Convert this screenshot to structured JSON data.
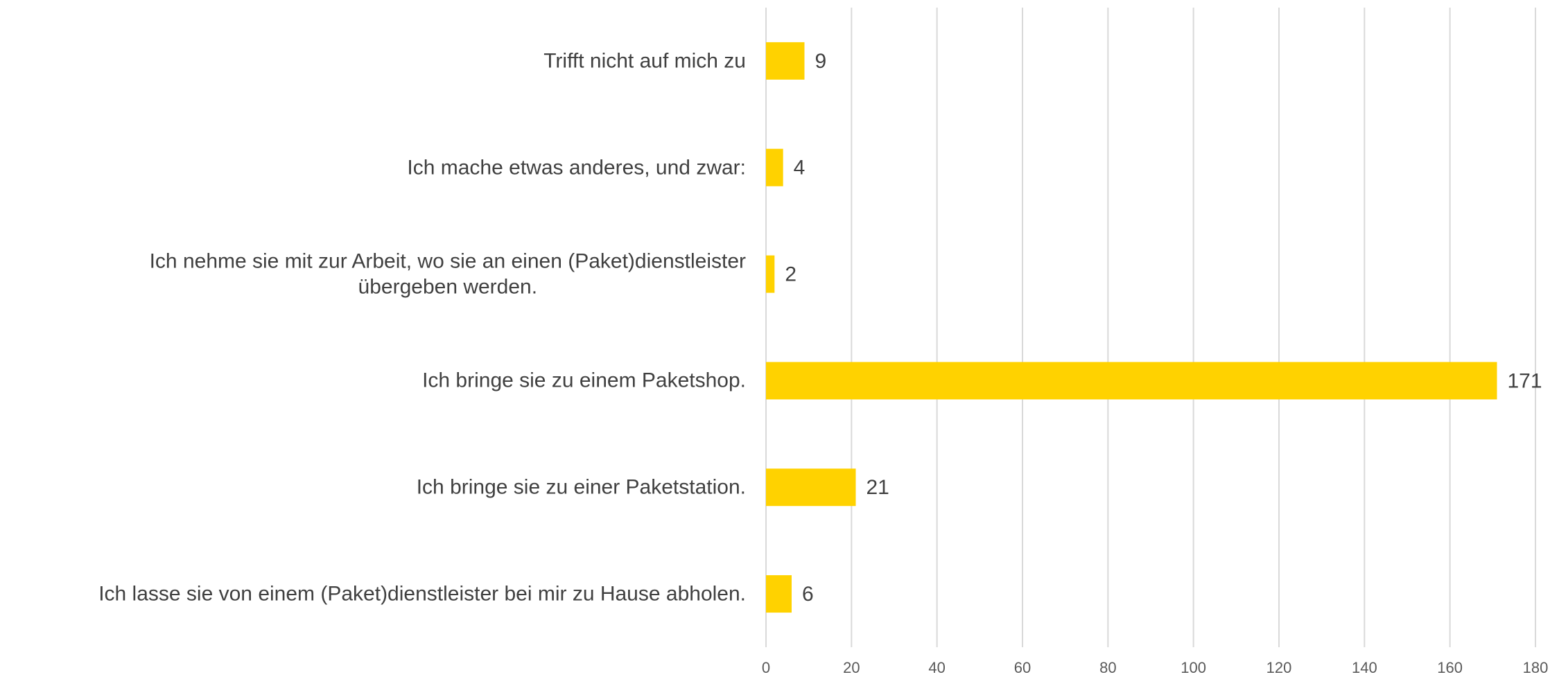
{
  "chart_data": {
    "type": "barh",
    "categories": [
      "Trifft nicht auf mich zu",
      "Ich mache etwas anderes, und zwar:",
      "Ich nehme sie mit zur Arbeit, wo sie an einen (Paket)dienstleister\nübergeben werden.",
      "Ich bringe sie zu einem Paketshop.",
      "Ich bringe sie zu einer Paketstation.",
      "Ich lasse sie von einem (Paket)dienstleister bei mir zu Hause abholen."
    ],
    "values": [
      9,
      4,
      2,
      171,
      21,
      6
    ],
    "color": "#ffd200",
    "xlim": [
      0,
      180
    ],
    "xticks": [
      0,
      20,
      40,
      60,
      80,
      100,
      120,
      140,
      160,
      180
    ],
    "grid": true
  }
}
